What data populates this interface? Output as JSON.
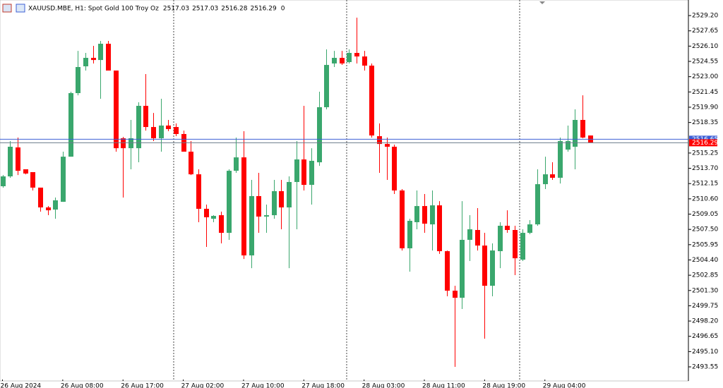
{
  "chart_data": {
    "type": "candlestick",
    "title": "XAUUSD.MBE, H1:  Spot Gold 100 Troy Oz",
    "header_volume": 0,
    "categories": [
      "26 Aug 2024",
      null,
      null,
      null,
      null,
      null,
      null,
      null,
      "26 Aug 08:00",
      null,
      null,
      null,
      null,
      null,
      null,
      null,
      "26 Aug 17:00",
      null,
      null,
      null,
      null,
      null,
      null,
      null,
      "27 Aug 02:00",
      null,
      null,
      null,
      null,
      null,
      null,
      null,
      "27 Aug 10:00",
      null,
      null,
      null,
      null,
      null,
      null,
      null,
      "27 Aug 18:00",
      null,
      null,
      null,
      null,
      null,
      null,
      null,
      "28 Aug 03:00",
      null,
      null,
      null,
      null,
      null,
      null,
      null,
      "28 Aug 11:00",
      null,
      null,
      null,
      null,
      null,
      null,
      null,
      "28 Aug 19:00",
      null,
      null,
      null,
      null,
      null,
      null,
      null,
      "29 Aug 04:00",
      null,
      null,
      null,
      null,
      null,
      null
    ],
    "open": [
      2511.88,
      2512.88,
      2515.82,
      2513.6,
      2513.31,
      2511.74,
      2509.73,
      2509.51,
      2510.3,
      2514.88,
      2521.33,
      2524.05,
      2524.91,
      2524.69,
      2526.34,
      2523.62,
      2516.75,
      2515.74,
      2515.74,
      2520.04,
      2517.89,
      2516.75,
      2518.04,
      2517.89,
      2517.18,
      2515.39,
      2513.09,
      2509.59,
      2508.58,
      2508.94,
      2507.15,
      2513.45,
      2514.81,
      2504.86,
      2510.88,
      2508.8,
      2508.94,
      2511.38,
      2509.73,
      2512.31,
      2514.6,
      2512.02,
      2514.31,
      2519.9,
      2524.34,
      2524.91,
      2524.48,
      2525.41,
      2525.05,
      2524.12,
      2516.96,
      2516.17,
      2515.89,
      2511.45,
      2505.58,
      2508.23,
      2509.87,
      2508.01,
      2509.94,
      2505.29,
      2501.28,
      2500.56,
      2506.44,
      2507.44,
      2505.86,
      2501.78,
      2505.29,
      2507.87,
      2507.44,
      2504.43,
      2507.15,
      2508.01,
      2512.09,
      2513.09,
      2512.74,
      2515.6,
      2515.89,
      2518.61,
      2517.03
    ],
    "high": [
      2513.02,
      2516.46,
      2516.82,
      2513.6,
      2513.31,
      2511.74,
      2509.87,
      2510.73,
      2515.39,
      2521.47,
      2525.62,
      2525.41,
      2526.13,
      2526.63,
      2526.63,
      2523.62,
      2516.89,
      2518.61,
      2520.4,
      2523.26,
      2519.32,
      2520.76,
      2518.61,
      2518.25,
      2517.53,
      2516.46,
      2513.6,
      2510.02,
      2508.94,
      2509.3,
      2513.6,
      2516.82,
      2517.46,
      2512.52,
      2513.24,
      2510.02,
      2512.52,
      2512.52,
      2512.88,
      2516.46,
      2520.04,
      2515.74,
      2521.47,
      2525.77,
      2525.62,
      2525.62,
      2525.77,
      2528.99,
      2525.62,
      2524.34,
      2518.25,
      2516.82,
      2516.1,
      2511.59,
      2508.58,
      2511.45,
      2511.09,
      2511.45,
      2510.37,
      2505.36,
      2501.78,
      2510.37,
      2508.94,
      2509.66,
      2507.15,
      2506.08,
      2508.23,
      2509.44,
      2507.87,
      2507.51,
      2508.44,
      2513.6,
      2514.88,
      2514.31,
      2516.82,
      2518.04,
      2519.68,
      2521.11,
      2517.03
    ],
    "low": [
      2511.74,
      2512.74,
      2513.02,
      2513.09,
      2511.45,
      2509.3,
      2508.94,
      2508.58,
      2510.3,
      2514.88,
      2521.11,
      2523.62,
      2524.34,
      2520.76,
      2523.62,
      2515.39,
      2510.73,
      2513.6,
      2514.31,
      2517.53,
      2516.46,
      2515.39,
      2517.46,
      2516.96,
      2515.39,
      2513.02,
      2508.23,
      2505.72,
      2508.23,
      2506.08,
      2506.44,
      2513.24,
      2504.5,
      2503.57,
      2507.15,
      2507.15,
      2508.58,
      2507.51,
      2503.57,
      2507.51,
      2511.45,
      2510.02,
      2513.95,
      2519.68,
      2523.98,
      2524.19,
      2524.34,
      2524.34,
      2523.62,
      2516.82,
      2513.24,
      2512.52,
      2511.09,
      2505.36,
      2503.21,
      2507.51,
      2507.15,
      2505.36,
      2505.02,
      2500.71,
      2493.55,
      2499.42,
      2504.29,
      2505.36,
      2496.41,
      2500.71,
      2503.57,
      2507.15,
      2502.86,
      2504.29,
      2507.01,
      2507.87,
      2511.59,
      2512.52,
      2512.16,
      2515.39,
      2513.6,
      2516.75,
      2516.28
    ],
    "close": [
      2512.88,
      2515.89,
      2513.45,
      2513.17,
      2511.74,
      2509.73,
      2509.44,
      2510.45,
      2514.88,
      2521.33,
      2523.98,
      2524.91,
      2524.69,
      2526.34,
      2523.62,
      2515.74,
      2515.74,
      2516.75,
      2520.04,
      2517.89,
      2516.75,
      2518.04,
      2517.68,
      2517.18,
      2515.39,
      2513.09,
      2509.59,
      2508.73,
      2508.87,
      2507.15,
      2513.45,
      2514.81,
      2504.86,
      2510.88,
      2508.8,
      2508.94,
      2511.38,
      2509.73,
      2512.31,
      2514.6,
      2512.02,
      2514.46,
      2519.9,
      2524.19,
      2524.91,
      2524.34,
      2525.41,
      2525.05,
      2524.12,
      2517.03,
      2516.17,
      2515.89,
      2511.45,
      2505.58,
      2508.37,
      2509.87,
      2508.08,
      2509.94,
      2505.29,
      2501.28,
      2500.56,
      2506.44,
      2507.51,
      2505.86,
      2501.78,
      2505.36,
      2507.87,
      2507.44,
      2504.57,
      2507.15,
      2508.01,
      2512.09,
      2513.09,
      2512.74,
      2516.46,
      2516.46,
      2518.61,
      2516.82,
      2516.29
    ],
    "up_color": "#3aa76d",
    "down_color": "#ff0000",
    "bid": 2516.29,
    "ask": 2516.65,
    "bid_color": "#ff0000",
    "ask_color": "#3d5fd6",
    "ylim": [
      2492.12,
      2530.78
    ],
    "yticks": [
      {
        "value": 2493.55,
        "label": "2493.55"
      },
      {
        "value": 2495.1,
        "label": "2495.10"
      },
      {
        "value": 2496.65,
        "label": "2496.65"
      },
      {
        "value": 2498.2,
        "label": "2498.20"
      },
      {
        "value": 2499.75,
        "label": "2499.75"
      },
      {
        "value": 2501.3,
        "label": "2501.30"
      },
      {
        "value": 2502.85,
        "label": "2502.85"
      },
      {
        "value": 2504.4,
        "label": "2504.40"
      },
      {
        "value": 2505.95,
        "label": "2505.95"
      },
      {
        "value": 2507.5,
        "label": "2507.50"
      },
      {
        "value": 2509.05,
        "label": "2509.05"
      },
      {
        "value": 2510.6,
        "label": "2510.60"
      },
      {
        "value": 2512.15,
        "label": "2512.15"
      },
      {
        "value": 2513.7,
        "label": "2513.70"
      },
      {
        "value": 2515.25,
        "label": "2515.25"
      },
      {
        "value": 2518.35,
        "label": "2518.35"
      },
      {
        "value": 2519.9,
        "label": "2519.90"
      },
      {
        "value": 2521.45,
        "label": "2521.45"
      },
      {
        "value": 2523,
        "label": "2523.00"
      },
      {
        "value": 2524.55,
        "label": "2524.55"
      },
      {
        "value": 2526.1,
        "label": "2526.10"
      },
      {
        "value": 2527.65,
        "label": "2527.65"
      },
      {
        "value": 2529.2,
        "label": "2529.20"
      }
    ]
  }
}
